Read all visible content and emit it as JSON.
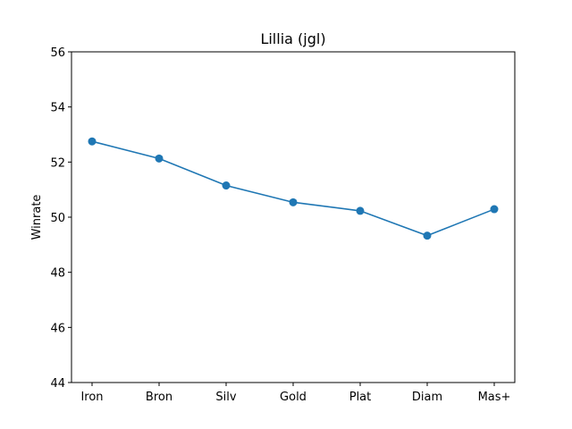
{
  "chart_data": {
    "type": "line",
    "title": "Lillia (jgl)",
    "xlabel": "",
    "ylabel": "Winrate",
    "categories": [
      "Iron",
      "Bron",
      "Silv",
      "Gold",
      "Plat",
      "Diam",
      "Mas+"
    ],
    "series": [
      {
        "values": [
          52.75,
          52.13,
          51.15,
          50.54,
          50.23,
          49.33,
          50.29
        ],
        "color": "#1f77b4"
      }
    ],
    "ylim": [
      44,
      56
    ],
    "yticks": [
      44,
      46,
      48,
      50,
      52,
      54,
      56
    ],
    "grid": false,
    "legend": "none"
  }
}
